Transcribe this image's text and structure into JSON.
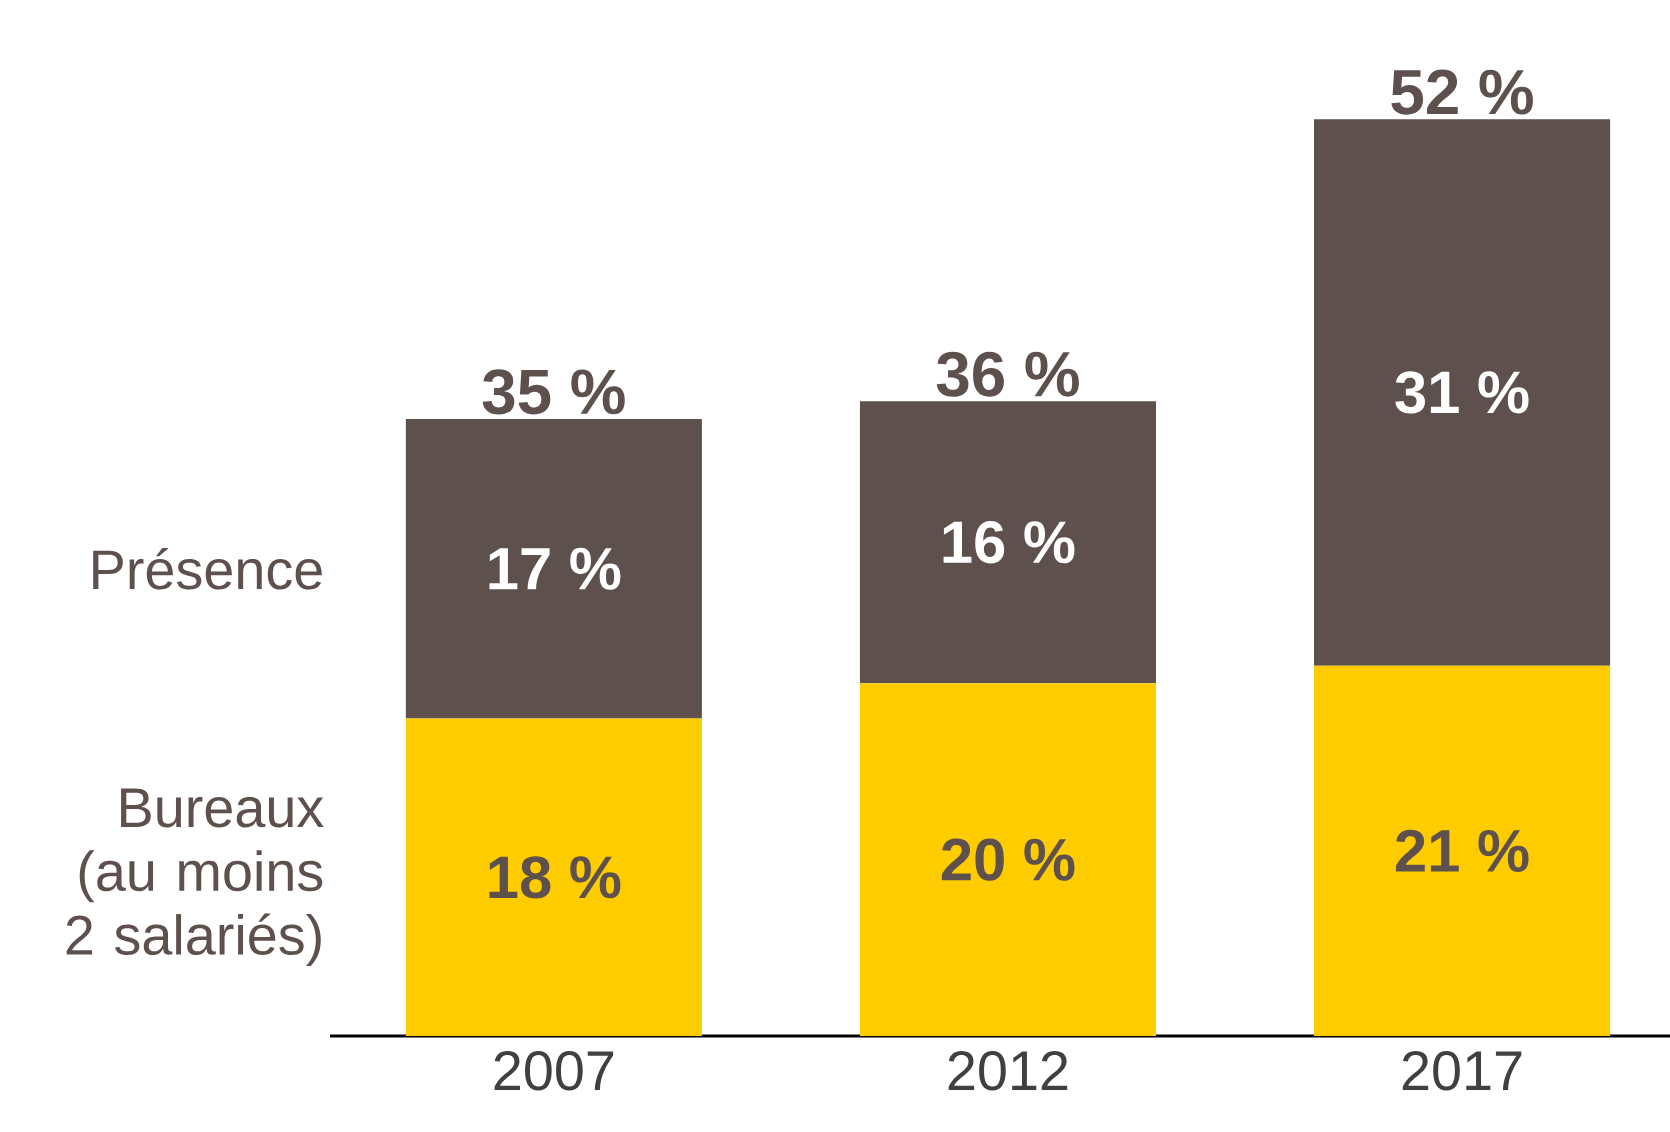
{
  "chart_data": {
    "type": "bar",
    "stacked": true,
    "categories": [
      "2007",
      "2012",
      "2017"
    ],
    "series": [
      {
        "name": "Bureaux (au moins 2 salariés)",
        "color": "#ffcc00",
        "values": [
          18,
          20,
          21
        ],
        "value_labels": [
          "18 %",
          "20 %",
          "21 %"
        ]
      },
      {
        "name": "Présence",
        "color": "#5e514d",
        "values": [
          17,
          16,
          31
        ],
        "value_labels": [
          "17 %",
          "16 %",
          "31 %"
        ]
      }
    ],
    "totals": [
      "35 %",
      "36 %",
      "52 %"
    ]
  }
}
